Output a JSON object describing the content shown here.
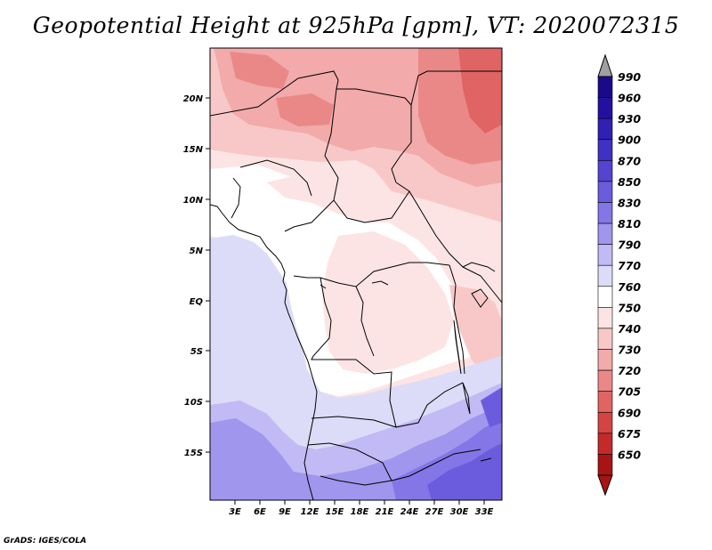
{
  "title": "Geopotential Height at 925hPa [gpm], VT: 2020072315",
  "credit": "GrADS: IGES/COLA",
  "lat_ticks": [
    "20N",
    "15N",
    "10N",
    "5N",
    "EQ",
    "5S",
    "10S",
    "15S"
  ],
  "lon_ticks": [
    "3E",
    "6E",
    "9E",
    "12E",
    "15E",
    "18E",
    "21E",
    "24E",
    "27E",
    "30E",
    "33E"
  ],
  "colorbar": {
    "levels": [
      {
        "label": "990",
        "color": "#1a0a8a"
      },
      {
        "label": "960",
        "color": "#2410a0"
      },
      {
        "label": "930",
        "color": "#3020b4"
      },
      {
        "label": "900",
        "color": "#4030c4"
      },
      {
        "label": "870",
        "color": "#5444d0"
      },
      {
        "label": "850",
        "color": "#6a5cdc"
      },
      {
        "label": "830",
        "color": "#8476e6"
      },
      {
        "label": "810",
        "color": "#a096ee"
      },
      {
        "label": "790",
        "color": "#c2baf4"
      },
      {
        "label": "770",
        "color": "#dcdcf8"
      },
      {
        "label": "760",
        "color": "#ffffff"
      },
      {
        "label": "750",
        "color": "#fde4e4"
      },
      {
        "label": "740",
        "color": "#f8c8c8"
      },
      {
        "label": "730",
        "color": "#f2aaaa"
      },
      {
        "label": "720",
        "color": "#ea8888"
      },
      {
        "label": "705",
        "color": "#e06464"
      },
      {
        "label": "690",
        "color": "#d44444"
      },
      {
        "label": "675",
        "color": "#c42a2a"
      },
      {
        "label": "650",
        "color": "#a81414"
      }
    ],
    "top_arrow_color": "#a0a0a0",
    "bottom_arrow_color": "#a81414"
  }
}
